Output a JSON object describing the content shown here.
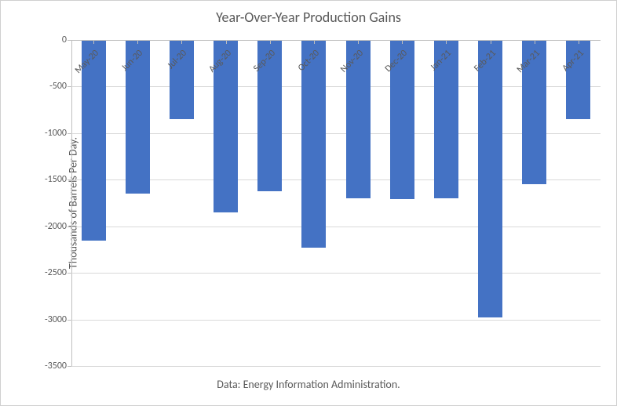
{
  "chart": {
    "type": "bar",
    "title": "Year-Over-Year Production Gains",
    "title_fontsize": 18,
    "ylabel": "Thousands of Barrels Per Day.",
    "label_fontsize": 14,
    "caption": "Data: Energy Information Administration.",
    "caption_fontsize": 14,
    "categories": [
      "May-20",
      "Jun-20",
      "Jul-20",
      "Aug-20",
      "Sep-20",
      "Oct-20",
      "Nov-20",
      "Dec-20",
      "Jan-21",
      "Feb-21",
      "Mar-21",
      "Apr-21"
    ],
    "values": [
      -2150,
      -1650,
      -850,
      -1850,
      -1620,
      -2230,
      -1700,
      -1710,
      -1700,
      -2980,
      -1550,
      -850
    ],
    "bar_color": "#4472c4",
    "ylim": [
      -3500,
      0
    ],
    "ytick_step": 500,
    "yticks": [
      0,
      -500,
      -1000,
      -1500,
      -2000,
      -2500,
      -3000,
      -3500
    ],
    "background_color": "#ffffff",
    "grid_color": "#d9d9d9",
    "axis_color": "#bfbfbf",
    "text_color": "#595959",
    "bar_width_ratio": 0.55,
    "tick_fontsize": 12,
    "xlabel_rotation": -45
  }
}
